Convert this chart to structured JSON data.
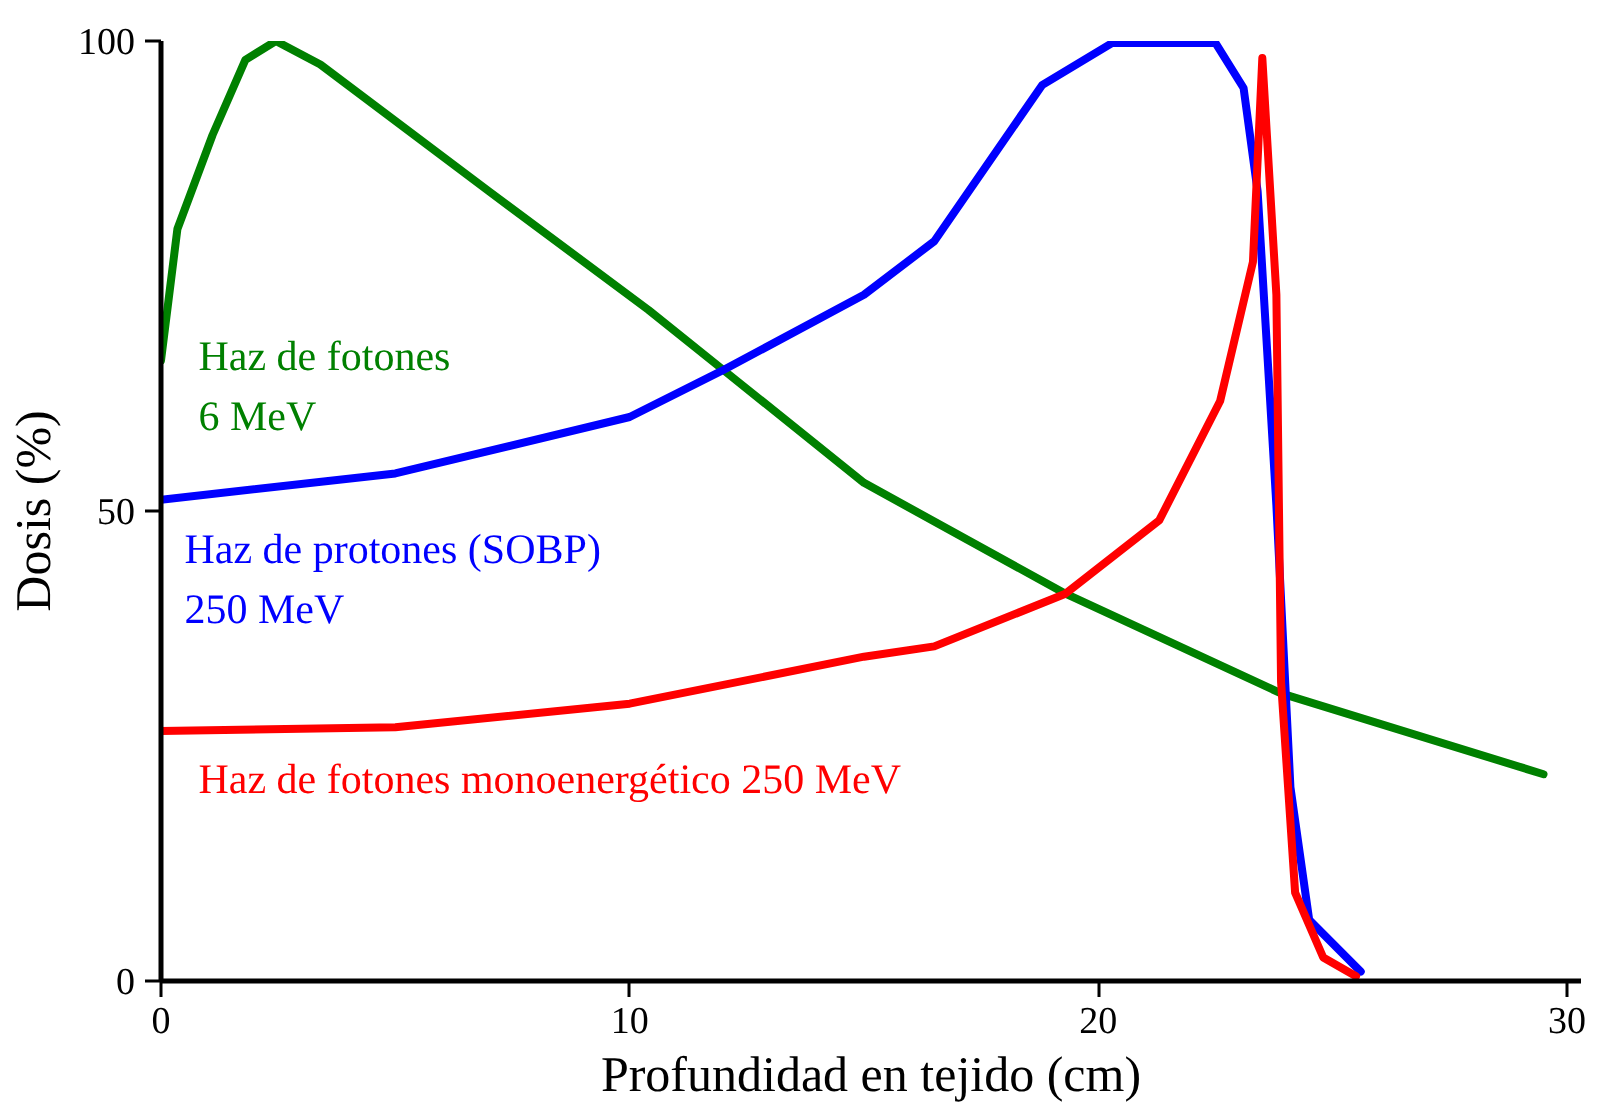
{
  "chart_data": {
    "type": "line",
    "xlabel": "Profundidad en tejido (cm)",
    "ylabel": "Dosis (%)",
    "xlim": [
      0,
      30.3
    ],
    "ylim": [
      0,
      100
    ],
    "xticks": [
      0,
      10,
      20,
      30
    ],
    "yticks": [
      0,
      50,
      100
    ],
    "grid": false,
    "marker": "none",
    "line_style": "solid",
    "series": [
      {
        "name": "Haz de fotones\n6 MeV",
        "color": "#008000",
        "x": [
          0,
          0.35,
          1.1,
          1.8,
          2.45,
          3.4,
          7,
          10.4,
          12,
          15,
          19.3,
          23.9,
          29.5
        ],
        "values": [
          66,
          80,
          90,
          98,
          100,
          97.5,
          84,
          71.4,
          65,
          53,
          41.2,
          30.6,
          22
        ]
      },
      {
        "name": "Haz de protones (SOBP)\n250 MeV",
        "color": "#0000ff",
        "x": [
          0,
          5,
          10,
          12,
          15,
          16.5,
          18.8,
          20.3,
          22.5,
          23.1,
          23.4,
          23.8,
          24.1,
          24.5,
          25.6
        ],
        "values": [
          51.2,
          54,
          60,
          65,
          73,
          78.7,
          95.3,
          99.8,
          99.8,
          95,
          84,
          50.6,
          20.6,
          6.5,
          1
        ]
      },
      {
        "name": "Haz de fotones monoenergético 250 MeV",
        "color": "#ff0000",
        "x": [
          0,
          5,
          10,
          15,
          16.5,
          19.3,
          21.3,
          22.6,
          23.3,
          23.5,
          23.8,
          23.9,
          24.2,
          24.8,
          25.5
        ],
        "values": [
          26.6,
          27,
          29.5,
          34.5,
          35.6,
          41.2,
          49,
          61.7,
          76.5,
          98.2,
          73,
          31.8,
          9.4,
          2.5,
          0.5
        ]
      }
    ]
  }
}
